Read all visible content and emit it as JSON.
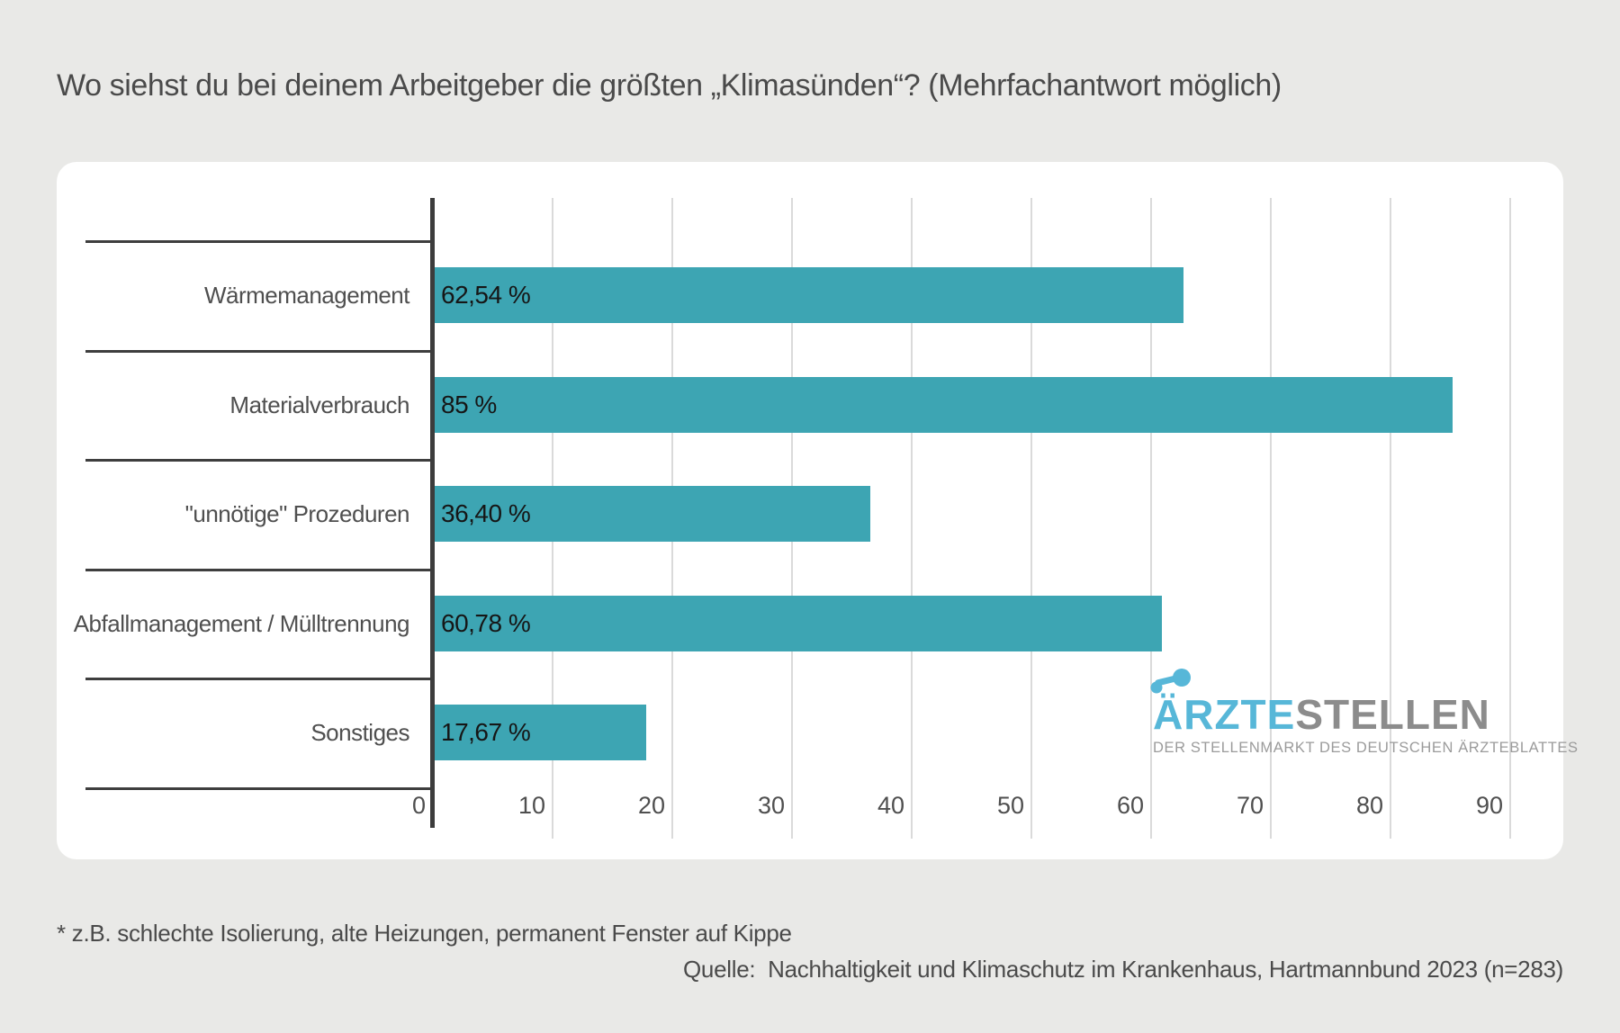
{
  "page": {
    "title": "Wo siehst du bei deinem Arbeitgeber die größten „Klimasünden“? (Mehrfachantwort möglich)",
    "footnote": "* z.B. schlechte Isolierung, alte Heizungen, permanent Fenster auf Kippe",
    "source": "Quelle:  Nachhaltigkeit und Klimaschutz im Krankenhaus, Hartmannbund 2023 (n=283)",
    "background_color": "#e9e9e7",
    "card_color": "#ffffff"
  },
  "chart_data": {
    "type": "bar",
    "orientation": "horizontal",
    "categories": [
      "Wärmemanagement",
      "Materialverbrauch",
      "\"unnötige\" Prozeduren",
      "Abfallmanagement / Mülltrennung",
      "Sonstiges"
    ],
    "values": [
      62.54,
      85,
      36.4,
      60.78,
      17.67
    ],
    "value_labels": [
      "62,54 %",
      "85 %",
      "36,40 %",
      "60,78 %",
      "17,67 %"
    ],
    "unit": "%",
    "xlim": [
      0,
      90
    ],
    "x_ticks": [
      0,
      10,
      20,
      30,
      40,
      50,
      60,
      70,
      80,
      90
    ],
    "grid": "vertical-light-gray",
    "bar_color": "#3da5b3",
    "axis_color": "#3c3c3c"
  },
  "logo": {
    "brand_primary": "ÄRZTE",
    "brand_secondary": "STELLEN",
    "tagline": "DER STELLENMARKT DES DEUTSCHEN ÄRZTEBLATTES",
    "icon": "dots-dumbbell-icon",
    "primary_color": "#57b7d8",
    "secondary_color": "#8c8c8c"
  }
}
